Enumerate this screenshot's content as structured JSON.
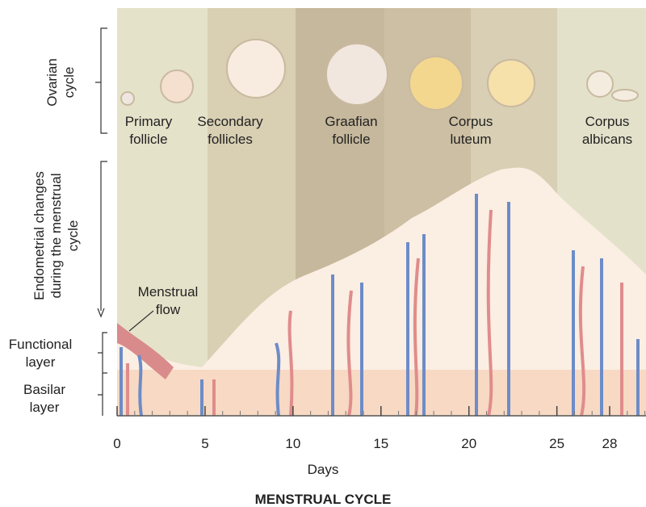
{
  "ovarian_cycle": {
    "label": [
      "Ovarian",
      "cycle"
    ],
    "stages": [
      {
        "lines": [
          "Primary",
          "follicle"
        ]
      },
      {
        "lines": [
          "Secondary",
          "follicles"
        ]
      },
      {
        "lines": [
          "Graafian",
          "follicle"
        ]
      },
      {
        "lines": [
          "Corpus",
          "luteum"
        ]
      },
      {
        "lines": [
          "Corpus",
          "albicans"
        ]
      }
    ]
  },
  "endometrium": {
    "label": [
      "Endometrial changes",
      "during the menstrual",
      "cycle"
    ],
    "menstrual_flow": [
      "Menstrual",
      "flow"
    ],
    "functional_layer": [
      "Functional",
      "layer"
    ],
    "basilar_layer": [
      "Basilar",
      "layer"
    ]
  },
  "days_axis": {
    "label": "Days",
    "ticks": [
      0,
      5,
      10,
      15,
      20,
      25,
      28
    ]
  },
  "caption": "MENSTRUAL CYCLE"
}
